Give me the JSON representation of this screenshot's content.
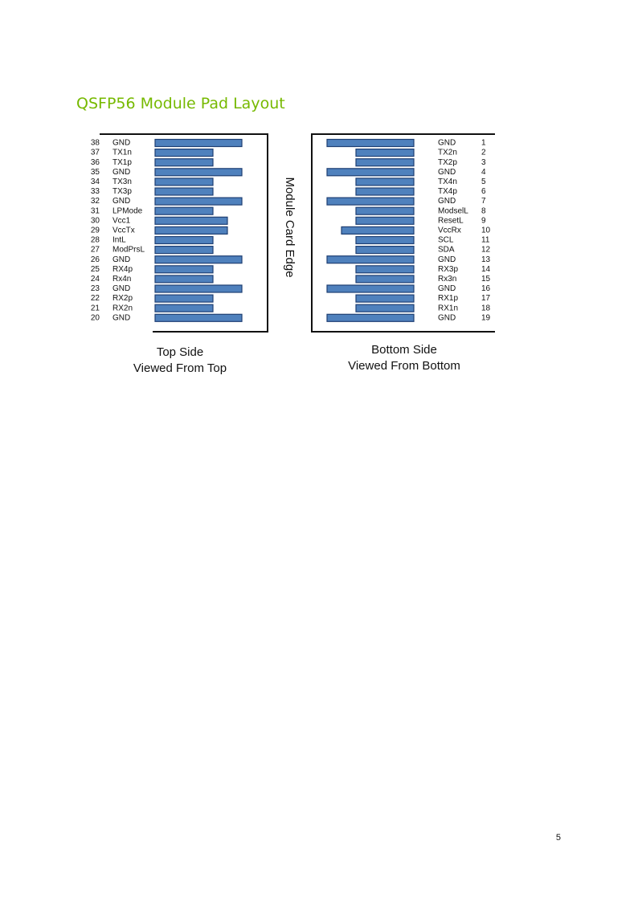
{
  "title": "QSFP56 Module Pad Layout",
  "top_side": {
    "pads": [
      {
        "number": "38",
        "name": "GND"
      },
      {
        "number": "37",
        "name": "TX1n"
      },
      {
        "number": "36",
        "name": "TX1p"
      },
      {
        "number": "35",
        "name": "GND"
      },
      {
        "number": "34",
        "name": "TX3n"
      },
      {
        "number": "33",
        "name": "TX3p"
      },
      {
        "number": "32",
        "name": "GND"
      },
      {
        "number": "31",
        "name": "LPMode"
      },
      {
        "number": "30",
        "name": "Vcc1"
      },
      {
        "number": "29",
        "name": "VccTx"
      },
      {
        "number": "28",
        "name": "IntL"
      },
      {
        "number": "27",
        "name": "ModPrsL"
      },
      {
        "number": "26",
        "name": "GND"
      },
      {
        "number": "25",
        "name": "RX4p"
      },
      {
        "number": "24",
        "name": "Rx4n"
      },
      {
        "number": "23",
        "name": "GND"
      },
      {
        "number": "22",
        "name": "RX2p"
      },
      {
        "number": "21",
        "name": "RX2n"
      },
      {
        "number": "20",
        "name": "GND"
      }
    ],
    "caption": [
      "Top Side",
      "Viewed From Top"
    ]
  },
  "bottom_side": {
    "pads": [
      {
        "number": "1",
        "name": "GND"
      },
      {
        "number": "2",
        "name": "TX2n"
      },
      {
        "number": "3",
        "name": "TX2p"
      },
      {
        "number": "4",
        "name": "GND"
      },
      {
        "number": "5",
        "name": "TX4n"
      },
      {
        "number": "6",
        "name": "TX4p"
      },
      {
        "number": "7",
        "name": "GND"
      },
      {
        "number": "8",
        "name": "ModselL"
      },
      {
        "number": "9",
        "name": "ResetL"
      },
      {
        "number": "10",
        "name": "VccRx"
      },
      {
        "number": "11",
        "name": "SCL"
      },
      {
        "number": "12",
        "name": "SDA"
      },
      {
        "number": "13",
        "name": "GND"
      },
      {
        "number": "14",
        "name": "RX3p"
      },
      {
        "number": "15",
        "name": "Rx3n"
      },
      {
        "number": "16",
        "name": "GND"
      },
      {
        "number": "17",
        "name": "RX1p"
      },
      {
        "number": "18",
        "name": "RX1n"
      },
      {
        "number": "19",
        "name": "GND"
      }
    ],
    "caption": [
      "Bottom Side",
      "Viewed From Bottom"
    ]
  },
  "edge_label": "Module Card Edge",
  "page_number": "5"
}
